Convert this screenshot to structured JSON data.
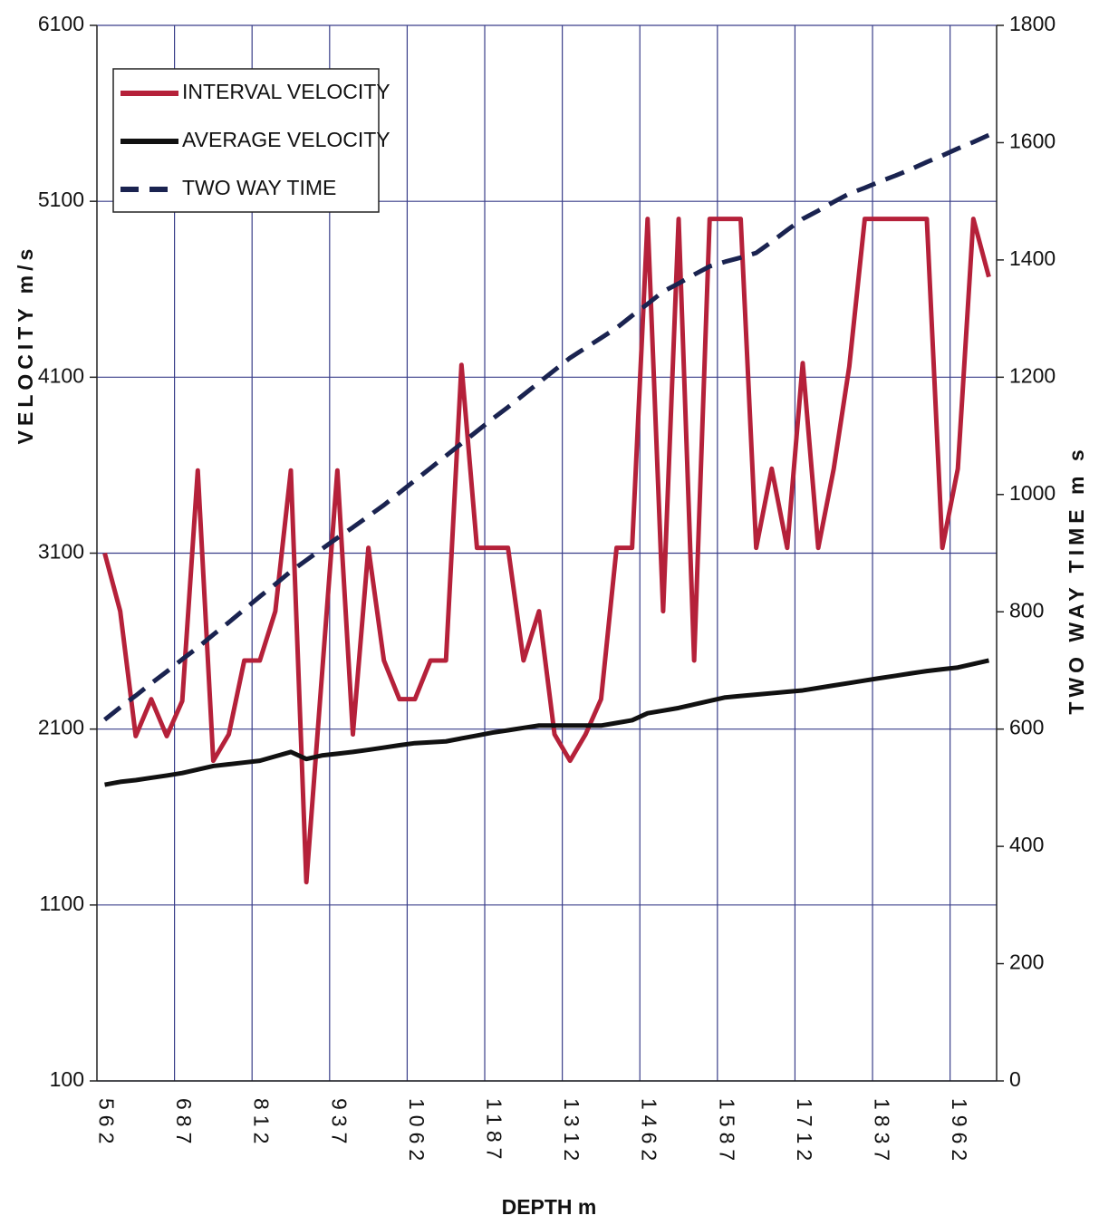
{
  "chart_data": {
    "type": "line",
    "x_label": "DEPTH m",
    "y_label": "VELOCITY m/s",
    "y2_label": "TWO WAY TIME m s",
    "categories": [
      "562",
      null,
      null,
      null,
      null,
      "687",
      null,
      null,
      null,
      null,
      "812",
      null,
      null,
      null,
      null,
      "937",
      null,
      null,
      null,
      null,
      "1062",
      null,
      null,
      null,
      null,
      "1187",
      null,
      null,
      null,
      null,
      "1312",
      null,
      null,
      null,
      null,
      "1462",
      null,
      null,
      null,
      null,
      "1587",
      null,
      null,
      null,
      null,
      "1712",
      null,
      null,
      null,
      null,
      "1837",
      null,
      null,
      null,
      null,
      "1962",
      null,
      null
    ],
    "series": [
      {
        "name": "INTERVAL VELOCITY",
        "color": "#b5213a",
        "dashed": false,
        "values": [
          3100,
          2770,
          2060,
          2270,
          2060,
          2260,
          3570,
          1920,
          2070,
          2490,
          2490,
          2770,
          3570,
          1230,
          2400,
          3570,
          2070,
          3130,
          2490,
          2270,
          2270,
          2490,
          2490,
          4170,
          3130,
          3130,
          3130,
          2490,
          2770,
          2070,
          1920,
          2070,
          2270,
          3130,
          3130,
          5000,
          2770,
          5000,
          2490,
          5000,
          5000,
          5000,
          3130,
          3580,
          3130,
          4180,
          3130,
          3580,
          4160,
          5000,
          5000,
          5000,
          5000,
          5000,
          3130,
          3580,
          5000,
          4670
        ]
      },
      {
        "name": "AVERAGE VELOCITY",
        "color": "#111111",
        "dashed": false,
        "values": [
          1784,
          1800,
          1810,
          1823,
          1836,
          1850,
          1870,
          1890,
          1900,
          1910,
          1920,
          1945,
          1970,
          1930,
          1950,
          1960,
          1970,
          1982,
          1995,
          2008,
          2020,
          2025,
          2030,
          2047,
          2063,
          2080,
          2093,
          2107,
          2120,
          2120,
          2120,
          2120,
          2120,
          2135,
          2150,
          2190,
          2205,
          2220,
          2240,
          2260,
          2280,
          2288,
          2296,
          2304,
          2312,
          2320,
          2334,
          2348,
          2362,
          2376,
          2390,
          2403,
          2417,
          2430,
          2440,
          2450,
          2470,
          2490
        ]
      },
      {
        "name": "TWO WAY TIME",
        "color": "#1a2350",
        "dashed": true,
        "axis": "y2",
        "values": [
          616,
          637,
          657,
          678,
          698,
          719,
          739,
          761,
          782,
          804,
          826,
          847,
          869,
          888,
          907,
          926,
          944,
          963,
          982,
          1003,
          1024,
          1045,
          1066,
          1087,
          1108,
          1129,
          1149,
          1170,
          1191,
          1212,
          1233,
          1250,
          1267,
          1284,
          1305,
          1325,
          1346,
          1360,
          1375,
          1389,
          1397,
          1404,
          1412,
          1431,
          1451,
          1470,
          1484,
          1499,
          1513,
          1523,
          1534,
          1544,
          1555,
          1567,
          1578,
          1590,
          1601,
          1613
        ]
      }
    ],
    "ylim": [
      100,
      6100
    ],
    "yticks": [
      100,
      1100,
      2100,
      3100,
      4100,
      5100,
      6100
    ],
    "y2lim": [
      0,
      1800
    ],
    "y2ticks": [
      0,
      200,
      400,
      600,
      800,
      1000,
      1200,
      1400,
      1600,
      1800
    ],
    "grid": true,
    "legend": "upper left"
  }
}
